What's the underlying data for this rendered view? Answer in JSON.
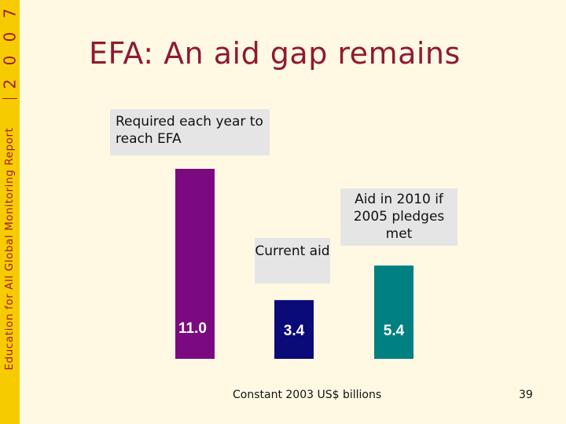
{
  "sidebar": {
    "year_digits": [
      "7",
      "0",
      "0",
      "2"
    ],
    "report_name": "Education for All Global Monitoring Report"
  },
  "title": "EFA: An aid gap remains",
  "chart_data": {
    "type": "bar",
    "categories": [
      "Required each year to reach EFA",
      "Current aid",
      "Aid in 2010 if 2005 pledges met"
    ],
    "values": [
      11.0,
      3.4,
      5.4
    ],
    "data_labels": [
      "11.0",
      "3.4",
      "5.4"
    ],
    "colors": [
      "#7b0a81",
      "#0a0a78",
      "#008080"
    ],
    "unit": "Constant 2003 US$ billions",
    "grid": false
  },
  "footer": {
    "unit": "Constant 2003 US$ billions",
    "page_number": "39"
  }
}
